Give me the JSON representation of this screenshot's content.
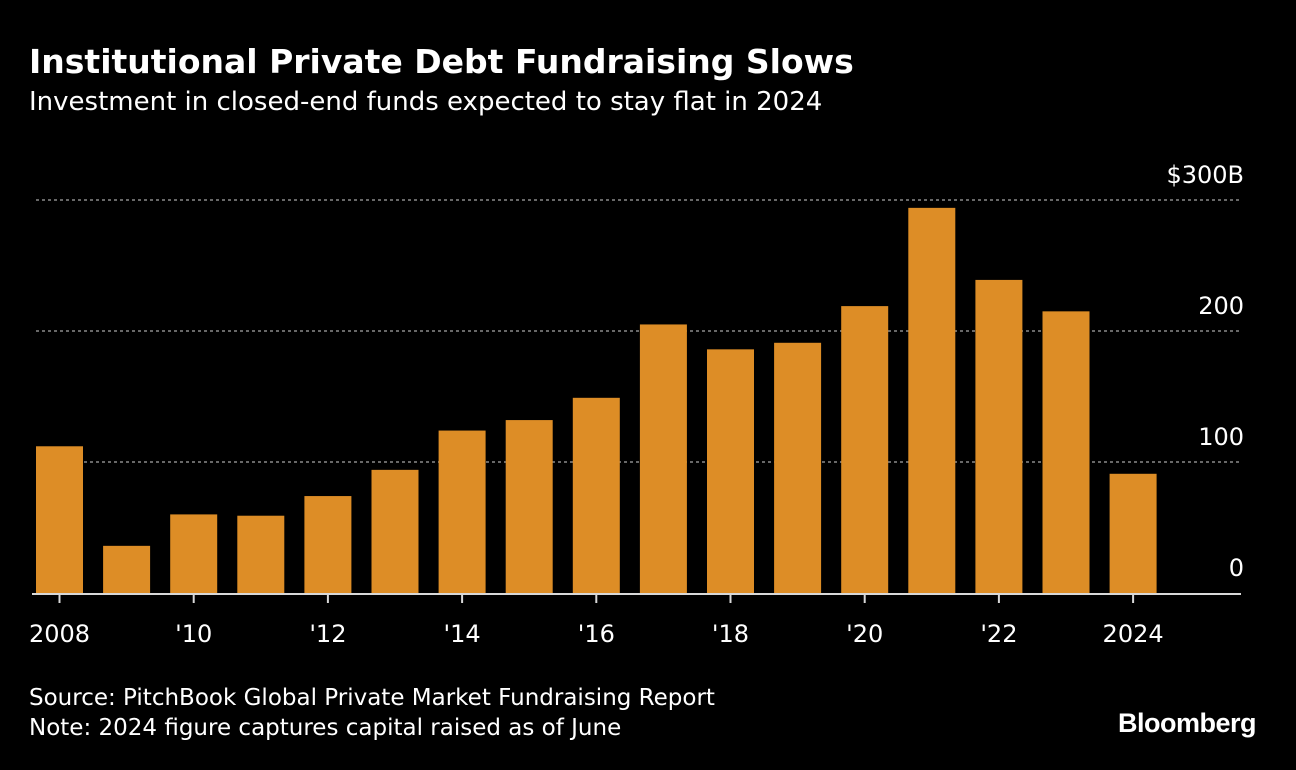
{
  "header": {
    "title": "Institutional Private Debt Fundraising Slows",
    "subtitle": "Investment in closed-end funds expected to stay flat in 2024"
  },
  "footer": {
    "source": "Source: PitchBook Global Private Market Fundraising Report",
    "note": "Note: 2024 figure captures capital raised as of June",
    "brand": "Bloomberg"
  },
  "colors": {
    "background": "#000000",
    "bar": "#dd8d26",
    "grid": "#8a8a8a",
    "text": "#ffffff"
  },
  "chart_data": {
    "type": "bar",
    "categories": [
      "2008",
      "2009",
      "2010",
      "2011",
      "2012",
      "2013",
      "2014",
      "2015",
      "2016",
      "2017",
      "2018",
      "2019",
      "2020",
      "2021",
      "2022",
      "2023",
      "2024"
    ],
    "values": [
      112,
      36,
      60,
      59,
      74,
      94,
      124,
      132,
      149,
      205,
      186,
      191,
      219,
      294,
      239,
      215,
      91
    ],
    "x_tick_labels": [
      {
        "index": 0,
        "label": "2008"
      },
      {
        "index": 2,
        "label": "'10"
      },
      {
        "index": 4,
        "label": "'12"
      },
      {
        "index": 6,
        "label": "'14"
      },
      {
        "index": 8,
        "label": "'16"
      },
      {
        "index": 10,
        "label": "'18"
      },
      {
        "index": 12,
        "label": "'20"
      },
      {
        "index": 14,
        "label": "'22"
      },
      {
        "index": 16,
        "label": "2024"
      }
    ],
    "y_ticks": [
      {
        "value": 0,
        "label": "0"
      },
      {
        "value": 100,
        "label": "100"
      },
      {
        "value": 200,
        "label": "200"
      },
      {
        "value": 300,
        "label": "$300B"
      }
    ],
    "ylim": [
      0,
      300
    ],
    "grid": true,
    "y_axis_position": "right"
  }
}
